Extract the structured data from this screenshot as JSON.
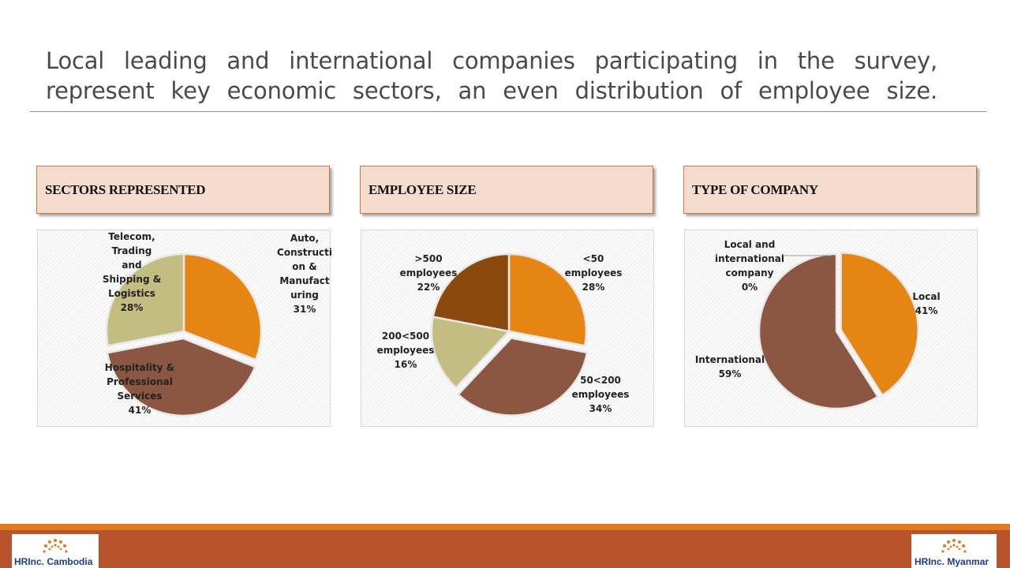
{
  "title": "Local leading and international companies participating in the survey, represent key economic sectors, an even distribution of employee size.",
  "panels": [
    {
      "header": "SECTORS REPRESENTED"
    },
    {
      "header": "EMPLOYEE SIZE"
    },
    {
      "header": "TYPE OF COMPANY"
    }
  ],
  "chart_data": [
    {
      "type": "pie",
      "title": "SECTORS REPRESENTED",
      "slices": [
        {
          "label": "Auto, Construction & Manufacturing",
          "display": [
            "Auto,",
            "Constructi",
            "on &",
            "Manufact",
            "uring",
            "31%"
          ],
          "value": 31,
          "color": "#e58513"
        },
        {
          "label": "Hospitality & Professional Services",
          "display": [
            "Hospitality &",
            "Professional",
            "Services",
            "41%"
          ],
          "value": 41,
          "color": "#8b5742"
        },
        {
          "label": "Telecom, Trading and Shipping & Logistics",
          "display": [
            "Telecom,",
            "Trading",
            "and",
            "Shipping &",
            "Logistics",
            "28%"
          ],
          "value": 28,
          "color": "#c4bd82"
        }
      ]
    },
    {
      "type": "pie",
      "title": "EMPLOYEE SIZE",
      "slices": [
        {
          "label": "<50 employees",
          "display": [
            "<50",
            "employees",
            "28%"
          ],
          "value": 28,
          "color": "#e58513"
        },
        {
          "label": "50<200 employees",
          "display": [
            "50<200",
            "employees",
            "34%"
          ],
          "value": 34,
          "color": "#8b5742"
        },
        {
          "label": "200<500 employees",
          "display": [
            "200<500",
            "employees",
            "16%"
          ],
          "value": 16,
          "color": "#c4bd82"
        },
        {
          "label": ">500 employees",
          "display": [
            ">500",
            "employees",
            "22%"
          ],
          "value": 22,
          "color": "#8a4a0e"
        }
      ]
    },
    {
      "type": "pie",
      "title": "TYPE OF COMPANY",
      "slices": [
        {
          "label": "Local",
          "display": [
            "Local",
            "41%"
          ],
          "value": 41,
          "color": "#e58513"
        },
        {
          "label": "International",
          "display": [
            "International",
            "59%"
          ],
          "value": 59,
          "color": "#8b5742"
        },
        {
          "label": "Local and international company",
          "display": [
            "Local and",
            "international",
            "company",
            "0%"
          ],
          "value": 0,
          "color": "#c4bd82"
        }
      ]
    }
  ],
  "footer": {
    "left_logo": {
      "prefix": "HRInc.",
      "name": "Cambodia"
    },
    "right_logo": {
      "prefix": "HRInc.",
      "name": "Myanmar"
    }
  }
}
